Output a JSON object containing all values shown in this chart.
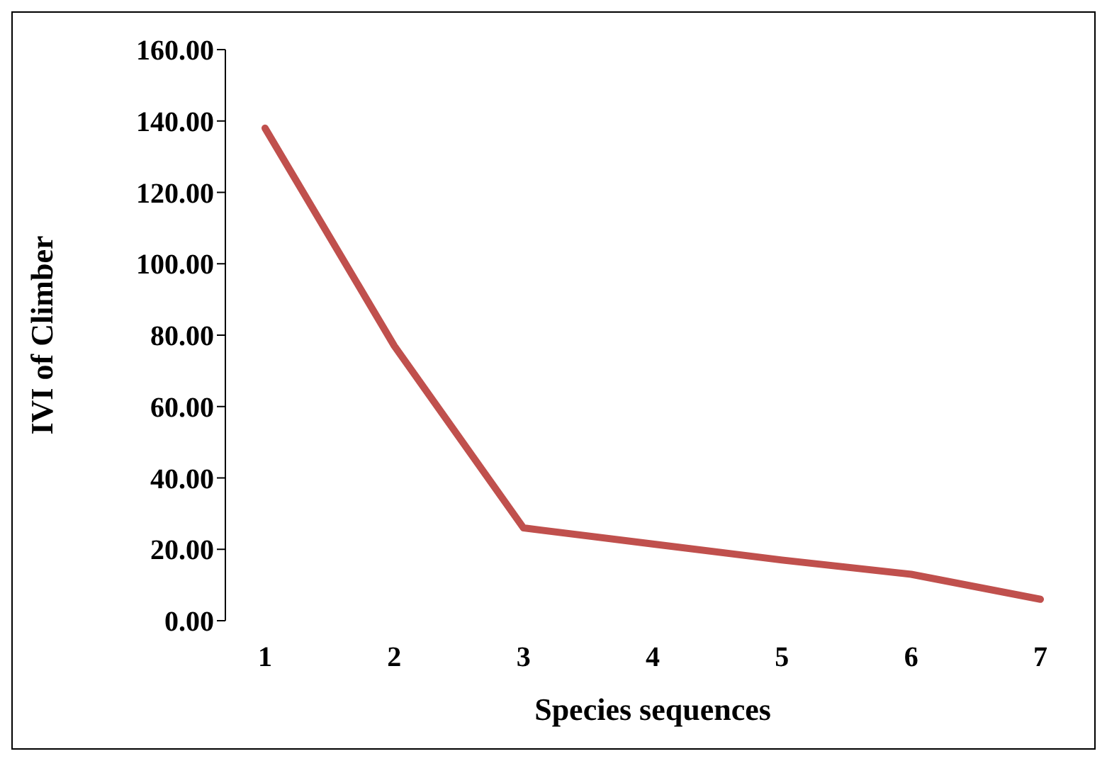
{
  "chart_data": {
    "type": "line",
    "xlabel": "Species sequences",
    "ylabel": "IVI of Climber",
    "categories": [
      "1",
      "2",
      "3",
      "4",
      "5",
      "6",
      "7"
    ],
    "series": [
      {
        "color": "#c0504d",
        "values": [
          138,
          77,
          26,
          21.5,
          17,
          13,
          6
        ]
      }
    ],
    "ylim": [
      0,
      160
    ],
    "yticks": [
      {
        "value": 0,
        "label": "0.00"
      },
      {
        "value": 20,
        "label": "20.00"
      },
      {
        "value": 40,
        "label": "40.00"
      },
      {
        "value": 60,
        "label": "60.00"
      },
      {
        "value": 80,
        "label": "80.00"
      },
      {
        "value": 100,
        "label": "100.00"
      },
      {
        "value": 120,
        "label": "120.00"
      },
      {
        "value": 140,
        "label": "140.00"
      },
      {
        "value": 160,
        "label": "160.00"
      }
    ],
    "grid": false,
    "legend": false,
    "marker": "none",
    "line_style": "solid"
  }
}
